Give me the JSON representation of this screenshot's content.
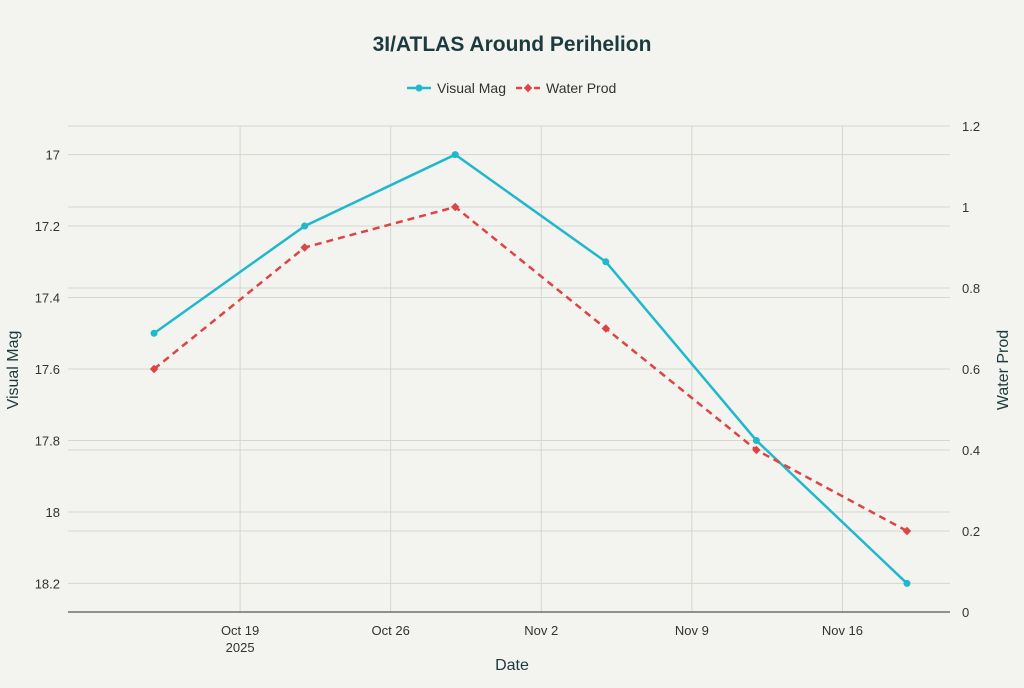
{
  "chart_data": {
    "type": "line",
    "title": "3I/ATLAS Around Perihelion",
    "xlabel": "Date",
    "ylabel": "Visual Mag",
    "y2label": "Water Prod",
    "legend_position": "top-center",
    "grid": true,
    "x": [
      "2025-10-15",
      "2025-10-22",
      "2025-10-29",
      "2025-11-05",
      "2025-11-12",
      "2025-11-19"
    ],
    "x_ticks": [
      {
        "date": "2025-10-19",
        "label": "Oct 19",
        "sublabel": "2025"
      },
      {
        "date": "2025-10-26",
        "label": "Oct 26"
      },
      {
        "date": "2025-11-02",
        "label": "Nov 2"
      },
      {
        "date": "2025-11-09",
        "label": "Nov 9"
      },
      {
        "date": "2025-11-16",
        "label": "Nov 16"
      }
    ],
    "xlim": [
      "2025-10-11",
      "2025-11-21"
    ],
    "y_axis": {
      "reversed": true,
      "range": [
        16.92,
        18.28
      ],
      "ticks": [
        "17",
        "17.2",
        "17.4",
        "17.6",
        "17.8",
        "18",
        "18.2"
      ]
    },
    "y2_axis": {
      "range": [
        0,
        1.2
      ],
      "ticks": [
        "0",
        "0.2",
        "0.4",
        "0.6",
        "0.8",
        "1",
        "1.2"
      ]
    },
    "series": [
      {
        "name": "Visual Mag",
        "axis": "left",
        "color": "#1fb8cd",
        "style": "solid",
        "marker": "circle",
        "values": [
          17.5,
          17.2,
          17.0,
          17.3,
          17.8,
          18.2
        ]
      },
      {
        "name": "Water Prod",
        "axis": "right",
        "color": "#db4545",
        "style": "dashed",
        "marker": "diamond",
        "values": [
          0.6,
          0.9,
          1.0,
          0.7,
          0.4,
          0.2
        ]
      }
    ]
  }
}
